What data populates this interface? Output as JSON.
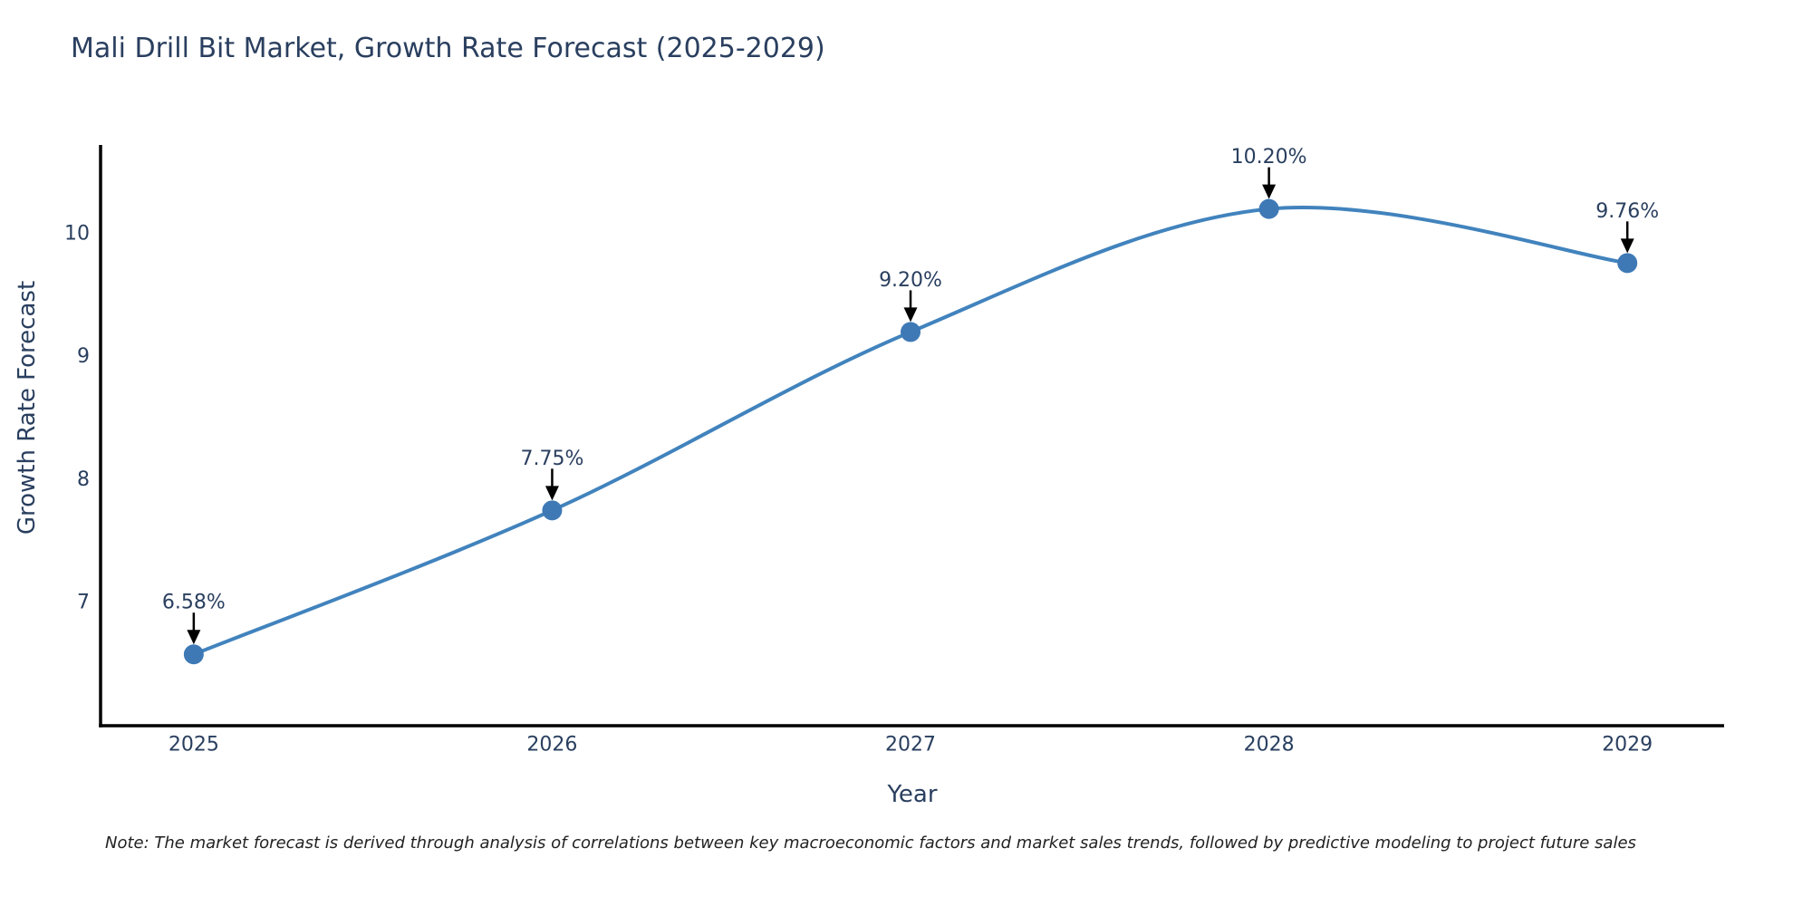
{
  "footnote": "Note: The market forecast is derived through analysis of correlations between key macroeconomic factors and market sales trends, followed by predictive modeling to project future sales",
  "chart_data": {
    "type": "line",
    "line_shape": "spline",
    "title": "Mali Drill Bit Market, Growth Rate Forecast (2025-2029)",
    "xlabel": "Year",
    "ylabel": "Growth Rate Forecast",
    "x": [
      2025,
      2026,
      2027,
      2028,
      2029
    ],
    "series": [
      {
        "name": "Growth Rate Forecast",
        "values": [
          6.58,
          7.75,
          9.2,
          10.2,
          9.76
        ],
        "point_labels": [
          "6.58%",
          "7.75%",
          "9.20%",
          "10.20%",
          "9.76%"
        ]
      }
    ],
    "x_tick_labels": [
      "2025",
      "2026",
      "2027",
      "2028",
      "2029"
    ],
    "y_tick_values": [
      7,
      8,
      9,
      10
    ],
    "y_tick_labels": [
      "7",
      "8",
      "9",
      "10"
    ],
    "xlim": [
      2024.74,
      2029.27
    ],
    "ylim": [
      6.0,
      10.72
    ],
    "grid": false,
    "legend_position": "none",
    "marker_style": "circle",
    "annotations_have_arrows": true,
    "colors": {
      "line": "#4183bd",
      "marker": "#3e79b6",
      "arrow": "#000000",
      "text": "#2a3f5f",
      "axis": "#000000",
      "note_text": "#222222",
      "background": "#ffffff"
    }
  }
}
